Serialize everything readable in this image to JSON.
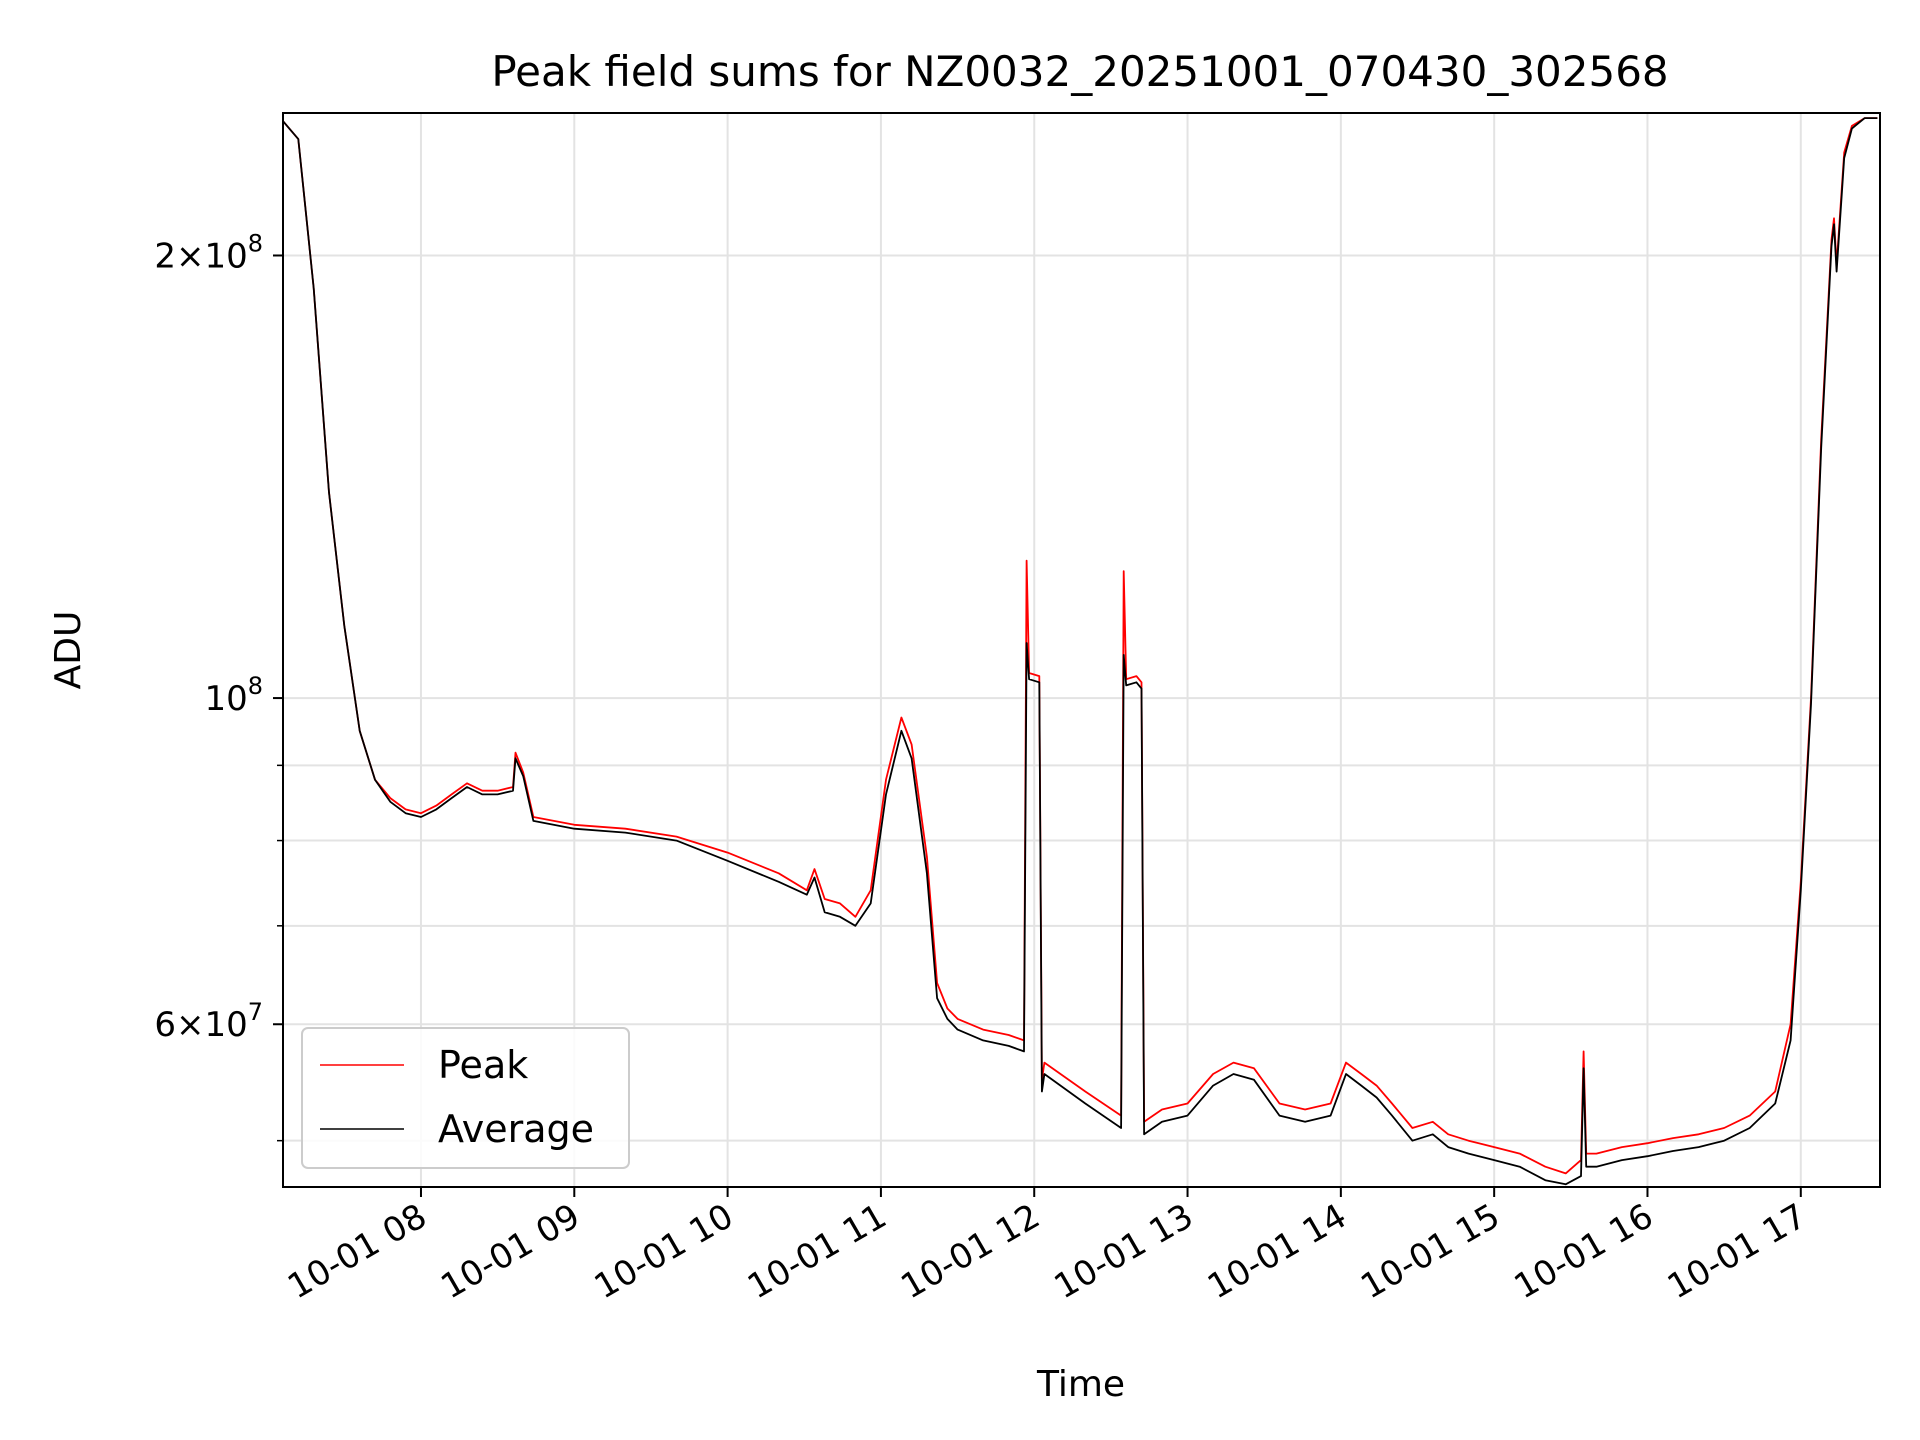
{
  "chart_data": {
    "type": "line",
    "title": "Peak field sums for NZ0032_20251001_070430_302568",
    "xlabel": "Time",
    "ylabel": "ADU",
    "yscale": "log",
    "xlim": [
      "10-01 07:06",
      "10-01 17:31"
    ],
    "ylim": [
      46500000,
      250000000
    ],
    "x_ticks": [
      "10-01 08",
      "10-01 09",
      "10-01 10",
      "10-01 11",
      "10-01 12",
      "10-01 13",
      "10-01 14",
      "10-01 15",
      "10-01 16",
      "10-01 17"
    ],
    "y_major_ticks": [
      {
        "value": 60000000,
        "mantissa": "6",
        "exponent": "7"
      },
      {
        "value": 100000000,
        "mantissa": "",
        "exponent": "8"
      },
      {
        "value": 200000000,
        "mantissa": "2",
        "exponent": "8"
      }
    ],
    "y_minor_ticks": [
      50000000,
      70000000,
      80000000,
      90000000,
      300000000
    ],
    "grid": true,
    "legend_position": "lower-left",
    "series": [
      {
        "name": "Peak",
        "color": "#ff0000",
        "x": [
          "10-01 07:05",
          "10-01 07:12",
          "10-01 07:18",
          "10-01 07:24",
          "10-01 07:30",
          "10-01 07:36",
          "10-01 07:42",
          "10-01 07:48",
          "10-01 07:54",
          "10-01 08:00",
          "10-01 08:06",
          "10-01 08:12",
          "10-01 08:18",
          "10-01 08:24",
          "10-01 08:30",
          "10-01 08:36",
          "10-01 08:37",
          "10-01 08:40",
          "10-01 08:44",
          "10-01 09:00",
          "10-01 09:20",
          "10-01 09:40",
          "10-01 10:00",
          "10-01 10:20",
          "10-01 10:31",
          "10-01 10:34",
          "10-01 10:38",
          "10-01 10:44",
          "10-01 10:50",
          "10-01 10:56",
          "10-01 11:02",
          "10-01 11:08",
          "10-01 11:12",
          "10-01 11:18",
          "10-01 11:22",
          "10-01 11:26",
          "10-01 11:30",
          "10-01 11:40",
          "10-01 11:50",
          "10-01 11:56",
          "10-01 11:57",
          "10-01 11:58",
          "10-01 12:02",
          "10-01 12:03",
          "10-01 12:04",
          "10-01 12:20",
          "10-01 12:34",
          "10-01 12:35",
          "10-01 12:36",
          "10-01 12:40",
          "10-01 12:42",
          "10-01 12:43",
          "10-01 12:50",
          "10-01 13:00",
          "10-01 13:10",
          "10-01 13:18",
          "10-01 13:26",
          "10-01 13:36",
          "10-01 13:46",
          "10-01 13:56",
          "10-01 14:02",
          "10-01 14:08",
          "10-01 14:14",
          "10-01 14:20",
          "10-01 14:28",
          "10-01 14:36",
          "10-01 14:42",
          "10-01 14:50",
          "10-01 15:00",
          "10-01 15:10",
          "10-01 15:20",
          "10-01 15:28",
          "10-01 15:34",
          "10-01 15:35",
          "10-01 15:36",
          "10-01 15:40",
          "10-01 15:50",
          "10-01 16:00",
          "10-01 16:10",
          "10-01 16:20",
          "10-01 16:30",
          "10-01 16:40",
          "10-01 16:50",
          "10-01 16:56",
          "10-01 17:00",
          "10-01 17:04",
          "10-01 17:08",
          "10-01 17:12",
          "10-01 17:13",
          "10-01 17:14",
          "10-01 17:17",
          "10-01 17:20",
          "10-01 17:25",
          "10-01 17:30"
        ],
        "values": [
          248000000,
          240000000,
          190000000,
          138000000,
          112000000,
          95000000,
          88000000,
          85500000,
          84000000,
          83500000,
          84500000,
          86000000,
          87500000,
          86500000,
          86500000,
          87000000,
          91800000,
          89000000,
          83000000,
          82000000,
          81500000,
          80500000,
          78500000,
          76000000,
          74000000,
          76500000,
          73000000,
          72500000,
          71000000,
          74000000,
          88000000,
          97000000,
          93000000,
          78000000,
          64000000,
          61500000,
          60500000,
          59500000,
          59000000,
          58500000,
          124000000,
          104000000,
          103500000,
          55000000,
          56500000,
          54000000,
          52000000,
          122000000,
          103000000,
          103500000,
          102500000,
          51500000,
          52500000,
          53000000,
          55500000,
          56500000,
          56000000,
          53000000,
          52500000,
          53000000,
          56500000,
          55500000,
          54500000,
          53000000,
          51000000,
          51500000,
          50500000,
          50000000,
          49500000,
          49000000,
          48000000,
          47500000,
          48500000,
          57500000,
          49000000,
          49000000,
          49500000,
          49800000,
          50200000,
          50500000,
          51000000,
          52000000,
          54000000,
          60000000,
          75000000,
          100000000,
          150000000,
          205000000,
          212000000,
          197000000,
          235000000,
          245000000,
          248000000,
          248000000
        ]
      },
      {
        "name": "Average",
        "color": "#000000",
        "x": [
          "10-01 07:05",
          "10-01 07:12",
          "10-01 07:18",
          "10-01 07:24",
          "10-01 07:30",
          "10-01 07:36",
          "10-01 07:42",
          "10-01 07:48",
          "10-01 07:54",
          "10-01 08:00",
          "10-01 08:06",
          "10-01 08:12",
          "10-01 08:18",
          "10-01 08:24",
          "10-01 08:30",
          "10-01 08:36",
          "10-01 08:37",
          "10-01 08:40",
          "10-01 08:44",
          "10-01 09:00",
          "10-01 09:20",
          "10-01 09:40",
          "10-01 10:00",
          "10-01 10:20",
          "10-01 10:31",
          "10-01 10:34",
          "10-01 10:38",
          "10-01 10:44",
          "10-01 10:50",
          "10-01 10:56",
          "10-01 11:02",
          "10-01 11:08",
          "10-01 11:12",
          "10-01 11:18",
          "10-01 11:22",
          "10-01 11:26",
          "10-01 11:30",
          "10-01 11:40",
          "10-01 11:50",
          "10-01 11:56",
          "10-01 11:57",
          "10-01 11:58",
          "10-01 12:02",
          "10-01 12:03",
          "10-01 12:04",
          "10-01 12:20",
          "10-01 12:34",
          "10-01 12:35",
          "10-01 12:36",
          "10-01 12:40",
          "10-01 12:42",
          "10-01 12:43",
          "10-01 12:50",
          "10-01 13:00",
          "10-01 13:10",
          "10-01 13:18",
          "10-01 13:26",
          "10-01 13:36",
          "10-01 13:46",
          "10-01 13:56",
          "10-01 14:02",
          "10-01 14:08",
          "10-01 14:14",
          "10-01 14:20",
          "10-01 14:28",
          "10-01 14:36",
          "10-01 14:42",
          "10-01 14:50",
          "10-01 15:00",
          "10-01 15:10",
          "10-01 15:20",
          "10-01 15:28",
          "10-01 15:34",
          "10-01 15:35",
          "10-01 15:36",
          "10-01 15:40",
          "10-01 15:50",
          "10-01 16:00",
          "10-01 16:10",
          "10-01 16:20",
          "10-01 16:30",
          "10-01 16:40",
          "10-01 16:50",
          "10-01 16:56",
          "10-01 17:00",
          "10-01 17:04",
          "10-01 17:08",
          "10-01 17:12",
          "10-01 17:13",
          "10-01 17:14",
          "10-01 17:17",
          "10-01 17:20",
          "10-01 17:25",
          "10-01 17:30"
        ],
        "values": [
          248000000,
          240000000,
          190000000,
          138000000,
          112000000,
          95000000,
          88000000,
          85000000,
          83500000,
          83000000,
          84000000,
          85500000,
          87000000,
          86000000,
          86000000,
          86500000,
          91000000,
          88500000,
          82500000,
          81500000,
          81000000,
          80000000,
          77500000,
          75000000,
          73500000,
          75500000,
          71500000,
          71000000,
          70000000,
          72500000,
          86000000,
          95000000,
          91000000,
          76000000,
          62500000,
          60500000,
          59500000,
          58500000,
          58000000,
          57500000,
          109000000,
          103000000,
          102500000,
          54000000,
          55500000,
          53000000,
          51000000,
          107000000,
          102000000,
          102500000,
          101500000,
          50500000,
          51500000,
          52000000,
          54500000,
          55500000,
          55000000,
          52000000,
          51500000,
          52000000,
          55500000,
          54500000,
          53500000,
          52000000,
          50000000,
          50500000,
          49500000,
          49000000,
          48500000,
          48000000,
          47000000,
          46700000,
          47300000,
          56000000,
          48000000,
          48000000,
          48500000,
          48800000,
          49200000,
          49500000,
          50000000,
          51000000,
          53000000,
          58500000,
          74000000,
          99000000,
          148000000,
          203000000,
          210000000,
          195000000,
          233000000,
          244000000,
          248000000,
          248000000
        ]
      }
    ]
  }
}
